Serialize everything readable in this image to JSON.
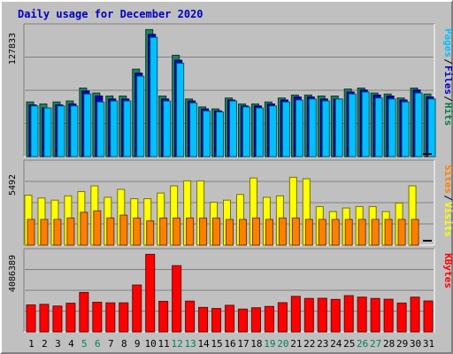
{
  "chart_data": [
    {
      "type": "bar",
      "title": "Daily usage for December 2020",
      "categories": [
        "1",
        "2",
        "3",
        "4",
        "5",
        "6",
        "7",
        "8",
        "9",
        "10",
        "11",
        "12",
        "13",
        "14",
        "15",
        "16",
        "17",
        "18",
        "19",
        "20",
        "21",
        "22",
        "23",
        "24",
        "25",
        "26",
        "27",
        "28",
        "29",
        "30",
        "31"
      ],
      "weekend_days": [
        "5",
        "6",
        "12",
        "13",
        "19",
        "20",
        "26",
        "27"
      ],
      "ytick_label": "127833",
      "ylim": [
        0,
        130000
      ],
      "legend": [
        {
          "text": "Pages",
          "color": "#00c0ff"
        },
        {
          "text": "/",
          "color": "#000000"
        },
        {
          "text": "Files",
          "color": "#0000c0"
        },
        {
          "text": "/",
          "color": "#000000"
        },
        {
          "text": "Hits",
          "color": "#008040"
        }
      ],
      "series": [
        {
          "name": "Hits",
          "color": "#208060",
          "values": [
            55000,
            53000,
            55000,
            56000,
            69000,
            64000,
            61000,
            61000,
            88000,
            127833,
            61000,
            102000,
            58000,
            50000,
            48000,
            59000,
            53000,
            53000,
            55000,
            59000,
            62000,
            62000,
            61000,
            61000,
            68000,
            69000,
            64000,
            63000,
            59000,
            69000,
            63000
          ]
        },
        {
          "name": "Files",
          "color": "#0000c0",
          "values": [
            52000,
            49000,
            52000,
            53000,
            66000,
            61000,
            58000,
            58000,
            84000,
            123000,
            58000,
            97000,
            56000,
            48000,
            46000,
            57000,
            51000,
            51000,
            53000,
            57000,
            60000,
            60000,
            58000,
            58000,
            65000,
            67000,
            62000,
            61000,
            57000,
            67000,
            60000
          ]
        },
        {
          "name": "Pages",
          "color": "#00c0ff",
          "values": [
            51000,
            49000,
            51000,
            51000,
            63000,
            55000,
            56000,
            56000,
            81000,
            120000,
            56000,
            94000,
            54000,
            46000,
            45000,
            56000,
            50000,
            49000,
            51000,
            55000,
            57000,
            58000,
            56000,
            58000,
            63000,
            65000,
            59000,
            58000,
            55000,
            64000,
            58000
          ]
        }
      ]
    },
    {
      "type": "bar",
      "ytick_label": "5492",
      "ylim": [
        0,
        5700
      ],
      "legend": [
        {
          "text": "Sites",
          "color": "#ff8000"
        },
        {
          "text": "/",
          "color": "#000000"
        },
        {
          "text": "Visits",
          "color": "#ffff00"
        }
      ],
      "series": [
        {
          "name": "Visits",
          "color": "#ffff00",
          "values": [
            3500,
            3300,
            3150,
            3450,
            3750,
            4150,
            3350,
            3900,
            3250,
            3250,
            3650,
            4150,
            4500,
            4500,
            3000,
            3150,
            3550,
            4700,
            3350,
            3450,
            4750,
            4650,
            2700,
            2350,
            2600,
            2700,
            2700,
            2350,
            2950,
            4150,
            0
          ]
        },
        {
          "name": "Sites",
          "color": "#ff8000",
          "values": [
            1800,
            1800,
            1800,
            1900,
            2300,
            2400,
            1900,
            2100,
            1900,
            1700,
            1900,
            1900,
            1900,
            1900,
            1900,
            1800,
            1800,
            1900,
            1800,
            1900,
            1900,
            1800,
            1800,
            1800,
            1800,
            1800,
            1800,
            1800,
            1800,
            1800,
            0
          ]
        }
      ]
    },
    {
      "type": "bar",
      "ytick_label": "4086389",
      "ylim": [
        0,
        4200000
      ],
      "legend": [
        {
          "text": "KBytes",
          "color": "#ff0000"
        }
      ],
      "series": [
        {
          "name": "KBytes",
          "color": "#ff0000",
          "values": [
            1420000,
            1450000,
            1360000,
            1510000,
            2080000,
            1560000,
            1530000,
            1530000,
            2470000,
            4086389,
            1610000,
            3490000,
            1620000,
            1290000,
            1230000,
            1400000,
            1200000,
            1270000,
            1340000,
            1540000,
            1870000,
            1760000,
            1770000,
            1710000,
            1910000,
            1830000,
            1760000,
            1720000,
            1520000,
            1830000,
            1630000
          ]
        }
      ]
    }
  ]
}
